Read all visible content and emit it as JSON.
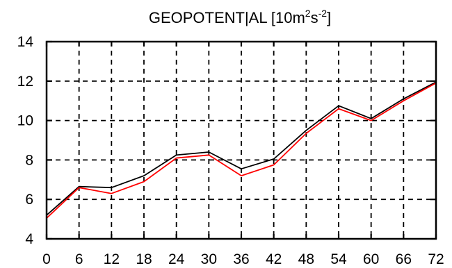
{
  "chart_data": {
    "type": "line",
    "title_main": "GEOPOTENT|AL [10m",
    "title_sup1": "2",
    "title_mid": "s",
    "title_sup2": "-2",
    "title_end": "]",
    "x": [
      0,
      6,
      12,
      18,
      24,
      30,
      36,
      42,
      48,
      54,
      60,
      66,
      72
    ],
    "x_tick_labels": [
      "0",
      "6",
      "12",
      "18",
      "24",
      "30",
      "36",
      "42",
      "48",
      "54",
      "60",
      "66",
      "72"
    ],
    "y_tick_labels": [
      "4",
      "6",
      "8",
      "10",
      "12",
      "14"
    ],
    "y_ticks": [
      4,
      6,
      8,
      10,
      12,
      14
    ],
    "xlim": [
      0,
      72
    ],
    "ylim": [
      4,
      14
    ],
    "grid": true,
    "series": [
      {
        "color": "#000000",
        "values": [
          5.2,
          6.65,
          6.6,
          7.2,
          8.25,
          8.4,
          7.55,
          8.05,
          9.5,
          10.75,
          10.1,
          11.1,
          11.95
        ]
      },
      {
        "color": "#ff0000",
        "values": [
          5.05,
          6.6,
          6.3,
          6.9,
          8.1,
          8.25,
          7.2,
          7.75,
          9.35,
          10.6,
          10.0,
          11.0,
          11.9
        ]
      }
    ]
  }
}
